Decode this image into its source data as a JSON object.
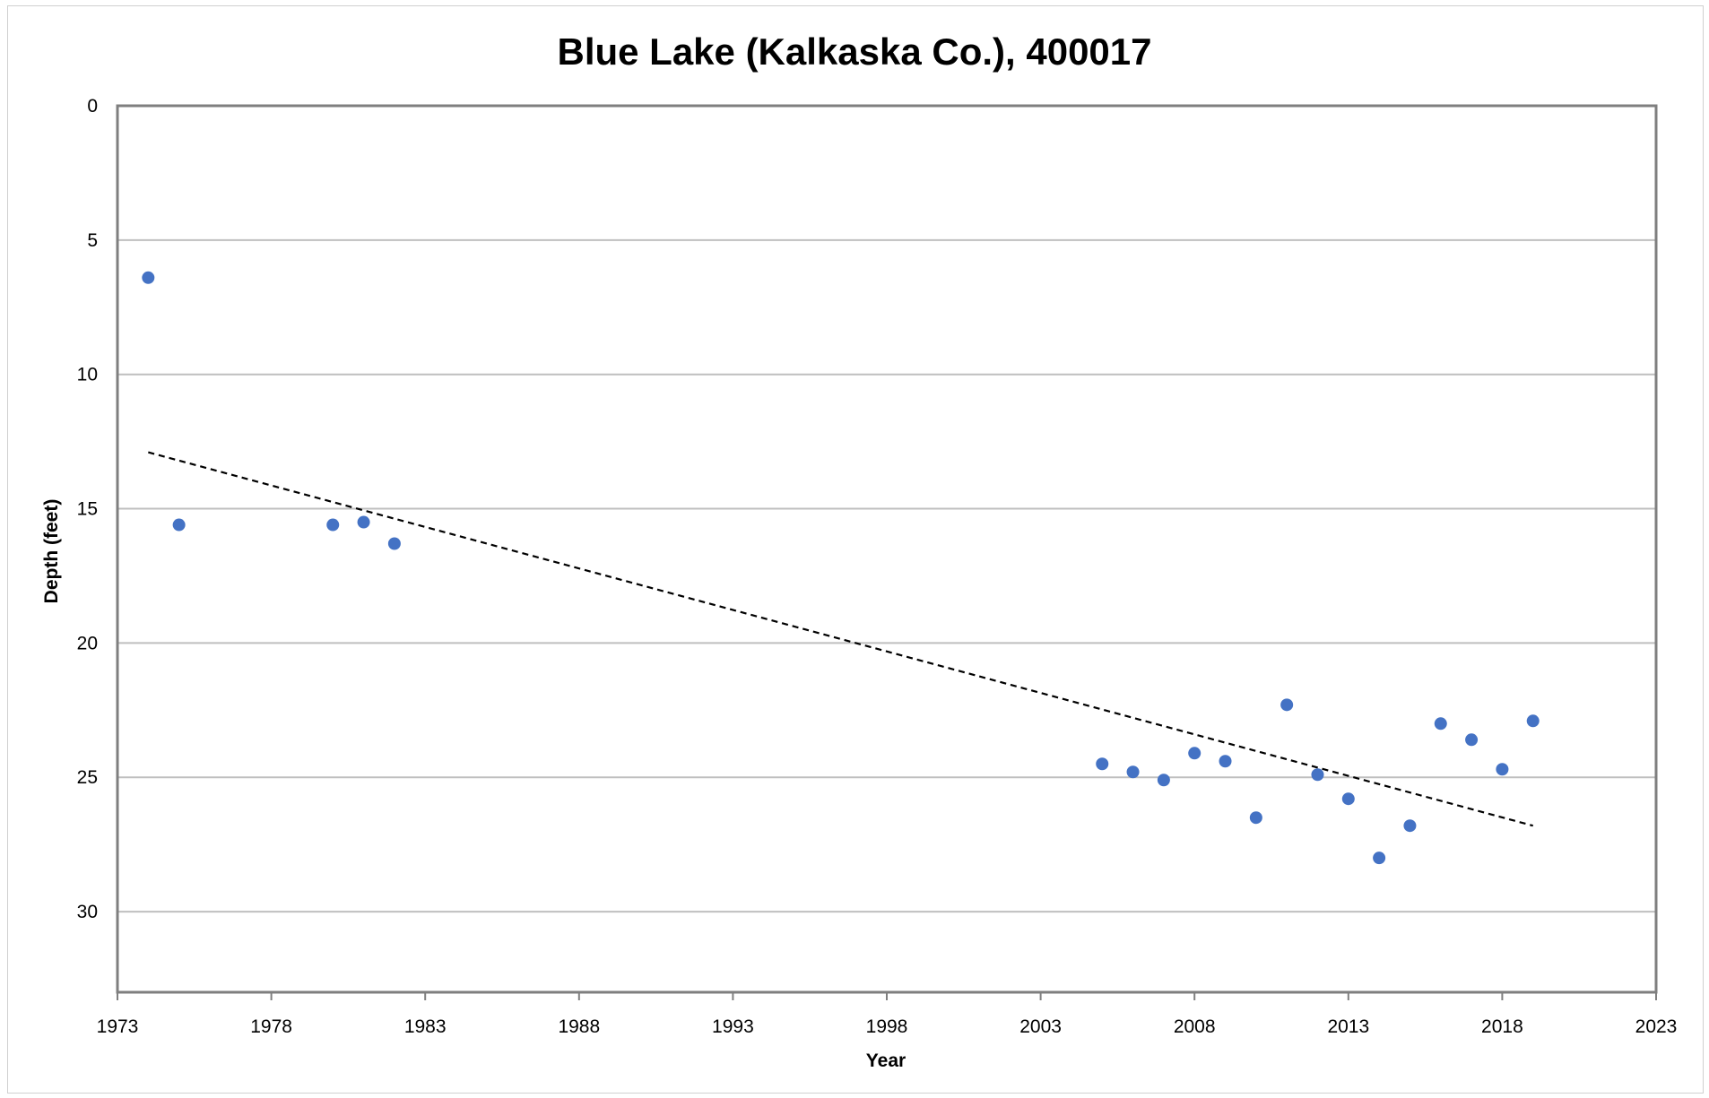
{
  "chart_data": {
    "type": "scatter",
    "title": "Blue Lake (Kalkaska Co.), 400017",
    "xlabel": "Year",
    "ylabel": "Depth (feet)",
    "xlim": [
      1973,
      2023
    ],
    "ylim": [
      0,
      33
    ],
    "y_inverted": true,
    "x_ticks": [
      1973,
      1978,
      1983,
      1988,
      1993,
      1998,
      2003,
      2008,
      2013,
      2018,
      2023
    ],
    "y_ticks": [
      0,
      5,
      10,
      15,
      20,
      25,
      30
    ],
    "grid": "horizontal",
    "legend": "none",
    "points": [
      {
        "x": 1974,
        "y": 6.4
      },
      {
        "x": 1975,
        "y": 15.6
      },
      {
        "x": 1980,
        "y": 15.6
      },
      {
        "x": 1981,
        "y": 15.5
      },
      {
        "x": 1982,
        "y": 16.3
      },
      {
        "x": 2005,
        "y": 24.5
      },
      {
        "x": 2006,
        "y": 24.8
      },
      {
        "x": 2007,
        "y": 25.1
      },
      {
        "x": 2008,
        "y": 24.1
      },
      {
        "x": 2009,
        "y": 24.4
      },
      {
        "x": 2010,
        "y": 26.5
      },
      {
        "x": 2011,
        "y": 22.3
      },
      {
        "x": 2012,
        "y": 24.9
      },
      {
        "x": 2013,
        "y": 25.8
      },
      {
        "x": 2014,
        "y": 28.0
      },
      {
        "x": 2015,
        "y": 26.8
      },
      {
        "x": 2016,
        "y": 23.0
      },
      {
        "x": 2017,
        "y": 23.6
      },
      {
        "x": 2018,
        "y": 24.7
      },
      {
        "x": 2019,
        "y": 22.9
      }
    ],
    "trendline": {
      "style": "dashed",
      "x": [
        1974,
        2019
      ],
      "y": [
        12.9,
        26.8
      ]
    },
    "colors": {
      "points": "#4472C4",
      "trendline": "#000000",
      "grid": "#bfbfbf",
      "axis": "#7f7f7f"
    }
  }
}
